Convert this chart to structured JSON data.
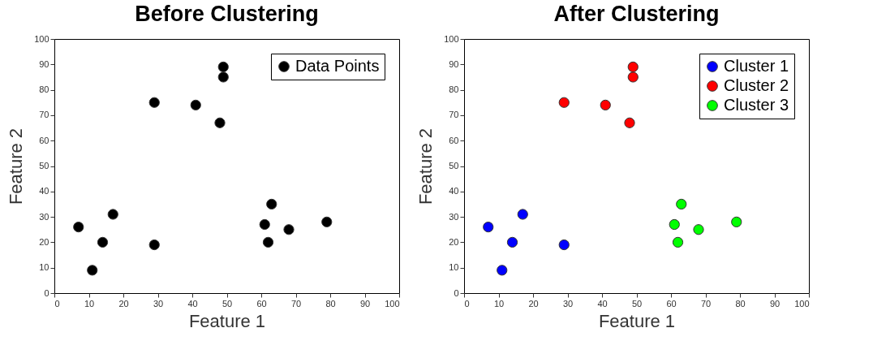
{
  "chart_data": [
    {
      "type": "scatter",
      "title": "Before Clustering",
      "xlabel": "Feature 1",
      "ylabel": "Feature 2",
      "xlim": [
        0,
        100
      ],
      "ylim": [
        0,
        100
      ],
      "xticks": [
        0,
        10,
        20,
        30,
        40,
        50,
        60,
        70,
        80,
        90,
        100
      ],
      "yticks": [
        0,
        10,
        20,
        30,
        40,
        50,
        60,
        70,
        80,
        90,
        100
      ],
      "grid": false,
      "legend": "top right",
      "marker": "circle",
      "series": [
        {
          "name": "Data Points",
          "color": "#000000",
          "x": [
            7,
            11,
            14,
            17,
            29,
            29,
            41,
            48,
            49,
            49,
            61,
            62,
            63,
            68,
            79
          ],
          "values": [
            26,
            9,
            20,
            31,
            19,
            75,
            74,
            67,
            85,
            89,
            27,
            20,
            35,
            25,
            28
          ]
        }
      ]
    },
    {
      "type": "scatter",
      "title": "After Clustering",
      "xlabel": "Feature 1",
      "ylabel": "Feature 2",
      "xlim": [
        0,
        100
      ],
      "ylim": [
        0,
        100
      ],
      "xticks": [
        0,
        10,
        20,
        30,
        40,
        50,
        60,
        70,
        80,
        90,
        100
      ],
      "yticks": [
        0,
        10,
        20,
        30,
        40,
        50,
        60,
        70,
        80,
        90,
        100
      ],
      "grid": false,
      "legend": "top right",
      "marker": "circle",
      "series": [
        {
          "name": "Cluster 1",
          "color": "#0000ff",
          "x": [
            7,
            11,
            14,
            17,
            29
          ],
          "values": [
            26,
            9,
            20,
            31,
            19
          ]
        },
        {
          "name": "Cluster 2",
          "color": "#ff0000",
          "x": [
            29,
            41,
            48,
            49,
            49
          ],
          "values": [
            75,
            74,
            67,
            85,
            89
          ]
        },
        {
          "name": "Cluster 3",
          "color": "#00ff00",
          "x": [
            61,
            62,
            63,
            68,
            79
          ],
          "values": [
            27,
            20,
            35,
            25,
            28
          ]
        }
      ]
    }
  ]
}
